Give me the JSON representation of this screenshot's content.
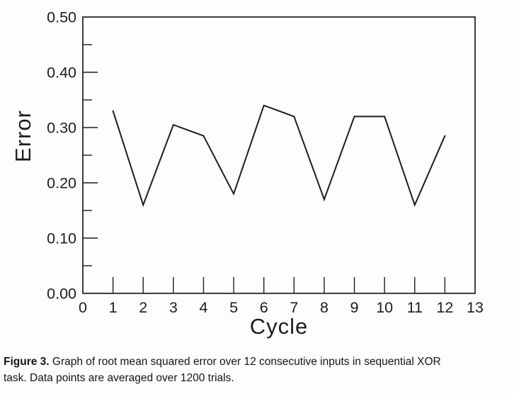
{
  "page": {
    "background": "#fdfdfc",
    "ink": "#1d1d1d"
  },
  "chart_data": {
    "type": "line",
    "title": "",
    "xlabel": "Cycle",
    "ylabel": "Error",
    "x": [
      1,
      2,
      3,
      4,
      5,
      6,
      7,
      8,
      9,
      10,
      11,
      12
    ],
    "y": [
      0.33,
      0.16,
      0.305,
      0.285,
      0.18,
      0.34,
      0.32,
      0.17,
      0.32,
      0.32,
      0.16,
      0.285
    ],
    "xlim": [
      0,
      13
    ],
    "ylim": [
      0,
      0.5
    ],
    "x_tick_values": [
      0,
      1,
      2,
      3,
      4,
      5,
      6,
      7,
      8,
      9,
      10,
      11,
      12,
      13
    ],
    "x_tick_labels": [
      "0",
      "1",
      "2",
      "3",
      "4",
      "5",
      "6",
      "7",
      "8",
      "9",
      "10",
      "11",
      "12",
      "13"
    ],
    "y_major_tick_values": [
      0,
      0.1,
      0.2,
      0.3,
      0.4,
      0.5
    ],
    "y_major_tick_labels": [
      "0.00",
      "0.10",
      "0.20",
      "0.30",
      "0.40",
      "0.50"
    ],
    "y_minor_tick_values": [
      0.05,
      0.15,
      0.25,
      0.35,
      0.45
    ],
    "grid": "off",
    "legend": "none",
    "line_color": "#1d1d1d"
  },
  "caption": {
    "label": "Figure 3.",
    "line1": "Graph of root mean squared error over 12 consecutive inputs in sequential XOR",
    "line2": "task. Data points are averaged over 1200 trials."
  }
}
